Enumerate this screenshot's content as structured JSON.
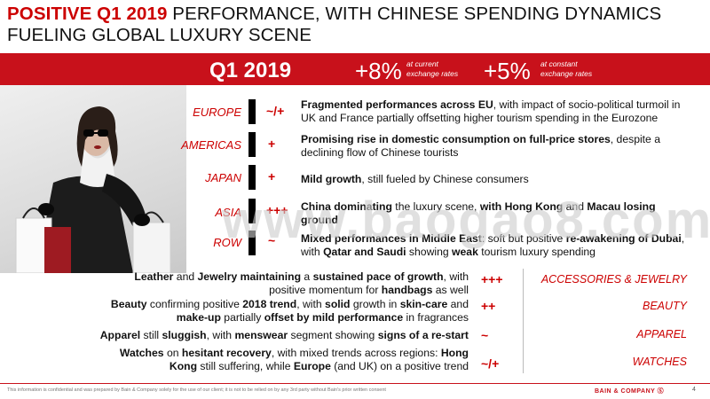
{
  "title": {
    "highlight": "POSITIVE Q1 2019",
    "line1_rest": " PERFORMANCE, WITH CHINESE  SPENDING DYNAMICS",
    "line2": "FUELING GLOBAL LUXURY SCENE"
  },
  "banner": {
    "period": "Q1 2019",
    "current": {
      "value": "+8%",
      "label_line1": "at current",
      "label_line2": "exchange rates"
    },
    "constant": {
      "value": "+5%",
      "label_line1": "at constant",
      "label_line2": "exchange rates"
    }
  },
  "regions": [
    {
      "name": "EUROPE",
      "sign": "~/+",
      "bold": "Fragmented performances across EU",
      "rest": ", with impact of socio-political turmoil in UK and France partially offsetting higher tourism spending in the Eurozone"
    },
    {
      "name": "AMERICAS",
      "sign": "+",
      "bold": "Promising rise in domestic consumption  on full-price stores",
      "rest": ",  despite a declining flow of Chinese tourists"
    },
    {
      "name": "JAPAN",
      "sign": "+",
      "bold": "Mild growth",
      "rest": ", still fueled by Chinese consumers"
    },
    {
      "name": "ASIA",
      "sign": "+++",
      "bold": "China dominating",
      "mid": " the luxury scene, ",
      "bold2": "with Hong Kong",
      "mid2": " and ",
      "bold3": "Macau losing ground"
    },
    {
      "name": "ROW",
      "sign": "~",
      "bold": "Mixed performances in Middle East",
      "mid": ": soft but positive ",
      "bold2": "re-awakening of Dubai",
      "mid2": ", with ",
      "bold3": "Qatar and Saudi",
      "mid3": " showing ",
      "bold4": "weak",
      "rest": " tourism luxury spending"
    }
  ],
  "categories": [
    {
      "name": "ACCESSORIES & JEWELRY",
      "sign": "+++",
      "t1": "Leather",
      "t2": " and ",
      "t3": "Jewelry maintaining",
      "t4": " a ",
      "t5": "sustained pace of growth",
      "t6": ", with positive momentum for ",
      "t7": "handbags",
      "t8": " as well"
    },
    {
      "name": "BEAUTY",
      "sign": "++",
      "t1": "Beauty",
      "t2": " confirming positive ",
      "t3": "2018 trend",
      "t4": ", with ",
      "t5": "solid",
      "t6": " growth in ",
      "t7": "skin-care",
      "t8": " and ",
      "t9": "make-up",
      "t10": " partially ",
      "t11": "offset by mild performance",
      "t12": " in fragrances"
    },
    {
      "name": "APPAREL",
      "sign": "~",
      "t1": "Apparel",
      "t2": " still ",
      "t3": "sluggish",
      "t4": ", with ",
      "t5": "menswear",
      "t6": " segment showing ",
      "t7": "signs of a re-start"
    },
    {
      "name": "WATCHES",
      "sign": "~/+",
      "t1": "Watches",
      "t2": " on ",
      "t3": "hesitant recovery",
      "t4": ", with mixed trends across regions: ",
      "t5": "Hong Kong",
      "t6": " still suffering, while ",
      "t7": "Europe",
      "t8": " (and UK) on a positive trend"
    }
  ],
  "watermark": "www.baogao8.com",
  "footer": {
    "disclaimer": "This information is confidential and was prepared by Bain & Company solely for the use of our client; it is not to be relied on by any 3rd party without Bain's prior written consent",
    "brand": "BAIN & COMPANY",
    "page": "4"
  }
}
